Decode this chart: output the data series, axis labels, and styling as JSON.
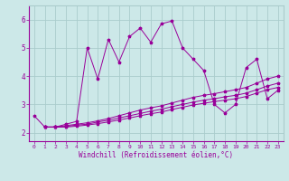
{
  "background_color": "#cce8e8",
  "grid_color": "#aacccc",
  "line_color": "#990099",
  "marker": "*",
  "xlabel": "Windchill (Refroidissement éolien,°C)",
  "xlim": [
    -0.5,
    23.5
  ],
  "ylim": [
    1.7,
    6.5
  ],
  "yticks": [
    2,
    3,
    4,
    5,
    6
  ],
  "xticks": [
    0,
    1,
    2,
    3,
    4,
    5,
    6,
    7,
    8,
    9,
    10,
    11,
    12,
    13,
    14,
    15,
    16,
    17,
    18,
    19,
    20,
    21,
    22,
    23
  ],
  "series": [
    {
      "x": [
        0,
        1,
        2,
        3,
        4,
        5,
        6,
        7,
        8,
        9,
        10,
        11,
        12,
        13,
        14,
        15,
        16,
        17,
        18,
        19,
        20,
        21,
        22,
        23
      ],
      "y": [
        2.6,
        2.2,
        2.2,
        2.3,
        2.4,
        5.0,
        3.9,
        5.3,
        4.5,
        5.4,
        5.7,
        5.2,
        5.85,
        5.95,
        5.0,
        4.6,
        4.2,
        3.0,
        2.7,
        3.0,
        4.3,
        4.6,
        3.2,
        3.5
      ]
    },
    {
      "x": [
        1,
        2,
        3,
        4,
        5,
        6,
        7,
        8,
        9,
        10,
        11,
        12,
        13,
        14,
        15,
        16,
        17,
        18,
        19,
        20,
        21,
        22,
        23
      ],
      "y": [
        2.2,
        2.2,
        2.25,
        2.3,
        2.35,
        2.42,
        2.5,
        2.6,
        2.7,
        2.8,
        2.88,
        2.95,
        3.05,
        3.15,
        3.25,
        3.32,
        3.38,
        3.45,
        3.52,
        3.6,
        3.75,
        3.9,
        4.0
      ]
    },
    {
      "x": [
        1,
        2,
        3,
        4,
        5,
        6,
        7,
        8,
        9,
        10,
        11,
        12,
        13,
        14,
        15,
        16,
        17,
        18,
        19,
        20,
        21,
        22,
        23
      ],
      "y": [
        2.2,
        2.2,
        2.22,
        2.27,
        2.3,
        2.38,
        2.44,
        2.52,
        2.6,
        2.68,
        2.76,
        2.83,
        2.92,
        3.0,
        3.08,
        3.15,
        3.2,
        3.27,
        3.32,
        3.4,
        3.52,
        3.65,
        3.75
      ]
    },
    {
      "x": [
        1,
        2,
        3,
        4,
        5,
        6,
        7,
        8,
        9,
        10,
        11,
        12,
        13,
        14,
        15,
        16,
        17,
        18,
        19,
        20,
        21,
        22,
        23
      ],
      "y": [
        2.2,
        2.2,
        2.2,
        2.23,
        2.27,
        2.32,
        2.38,
        2.45,
        2.52,
        2.6,
        2.67,
        2.73,
        2.82,
        2.9,
        2.98,
        3.04,
        3.1,
        3.15,
        3.2,
        3.28,
        3.4,
        3.52,
        3.6
      ]
    }
  ]
}
